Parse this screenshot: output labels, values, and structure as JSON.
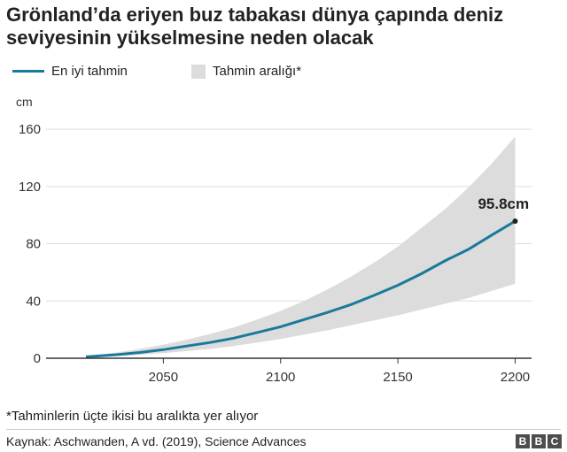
{
  "title": "Grönland’da eriyen buz tabakası dünya çapında deniz seviyesinin yükselmesine neden olacak",
  "legend": {
    "line_label": "En iyi tahmin",
    "range_label": "Tahmin aralığı*"
  },
  "footnote": "*Tahminlerin üçte ikisi bu aralıkta yer alıyor",
  "source": "Kaynak: Aschwanden, A vd. (2019), Science Advances",
  "logo": [
    "B",
    "B",
    "C"
  ],
  "colors": {
    "line": "#1a7a9a",
    "band": "#dcdcdc",
    "axis": "#333333",
    "grid": "#dddddd"
  },
  "chart_data": {
    "type": "line",
    "ylabel": "cm",
    "xlim": [
      2000,
      2207
    ],
    "ylim": [
      0,
      165
    ],
    "xticks": [
      2050,
      2100,
      2150,
      2200
    ],
    "yticks": [
      0,
      40,
      80,
      120,
      160
    ],
    "series": [
      {
        "name": "En iyi tahmin",
        "x": [
          2017,
          2030,
          2040,
          2050,
          2060,
          2070,
          2080,
          2090,
          2100,
          2110,
          2120,
          2130,
          2140,
          2150,
          2160,
          2170,
          2180,
          2190,
          2200
        ],
        "y": [
          1,
          2.5,
          4,
          6,
          8.5,
          11,
          14,
          18,
          22,
          27,
          32,
          37.5,
          44,
          51,
          59,
          68,
          76,
          86,
          95.8
        ]
      }
    ],
    "band": {
      "name": "Tahmin aralığı*",
      "x": [
        2017,
        2030,
        2040,
        2050,
        2060,
        2070,
        2080,
        2090,
        2100,
        2110,
        2120,
        2130,
        2140,
        2150,
        2160,
        2170,
        2180,
        2190,
        2200
      ],
      "upper": [
        1.5,
        4,
        6.5,
        9.5,
        13,
        17,
        21.5,
        27,
        33,
        40,
        48,
        57,
        67,
        78,
        91,
        104,
        119,
        136,
        155
      ],
      "lower": [
        0.5,
        1.5,
        2.5,
        3.5,
        5,
        6.5,
        8.5,
        11,
        13.5,
        16.5,
        19.5,
        23,
        26.5,
        30,
        34,
        38,
        42,
        47,
        52
      ]
    },
    "annotation": {
      "x": 2200,
      "y": 95.8,
      "text": "95.8cm"
    }
  }
}
